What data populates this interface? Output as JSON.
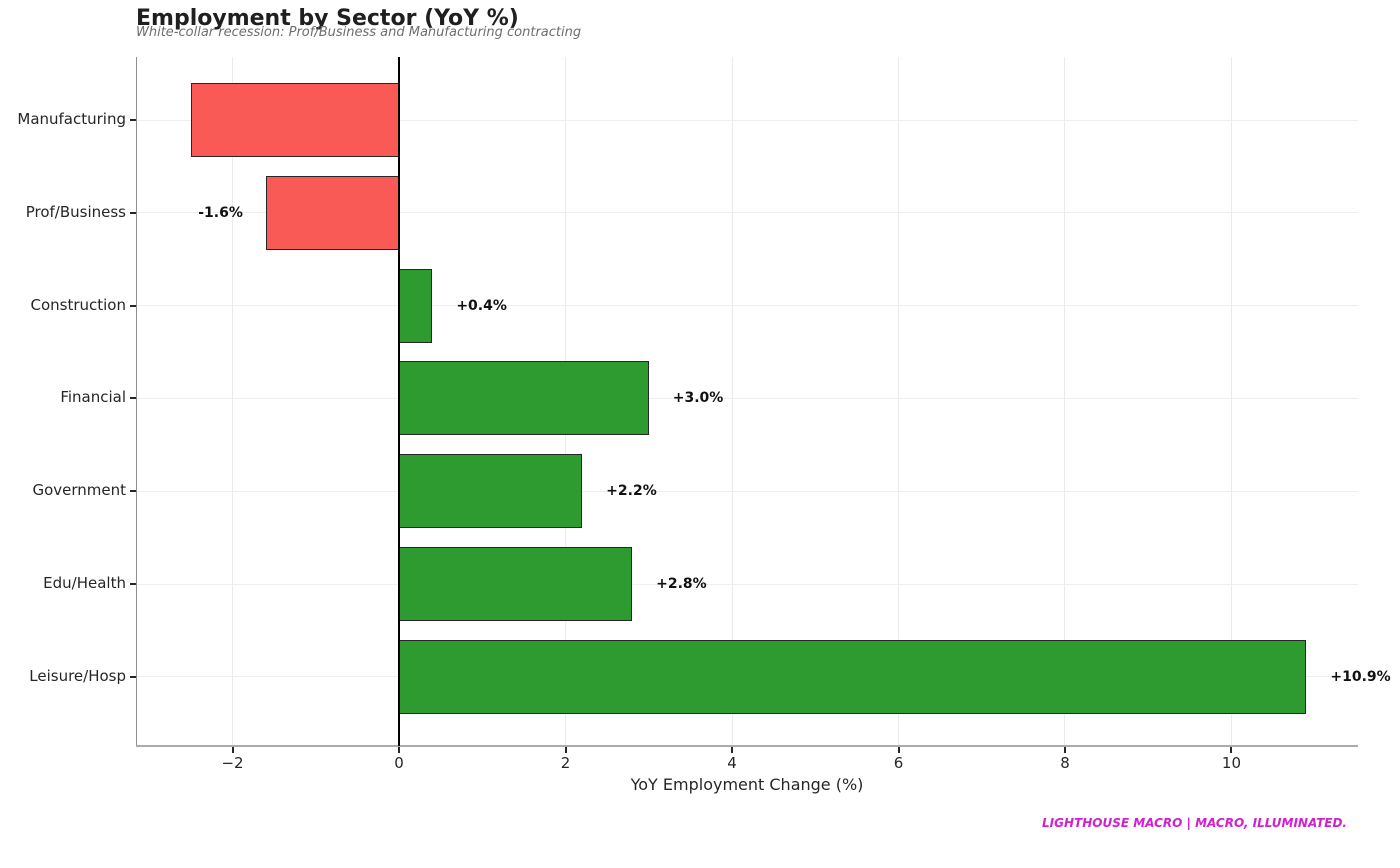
{
  "header": {
    "title": "Employment by Sector (YoY %)",
    "subtitle": "White-collar recession: Prof/Business and Manufacturing contracting"
  },
  "footer": {
    "brand": "LIGHTHOUSE MACRO | MACRO, ILLUMINATED."
  },
  "chart_data": {
    "type": "bar",
    "orientation": "horizontal",
    "title": "Employment by Sector (YoY %)",
    "subtitle": "White-collar recession: Prof/Business and Manufacturing contracting",
    "categories": [
      "Manufacturing",
      "Prof/Business",
      "Construction",
      "Financial",
      "Government",
      "Edu/Health",
      "Leisure/Hosp"
    ],
    "values": [
      -2.5,
      -1.6,
      0.4,
      3.0,
      2.2,
      2.8,
      10.9
    ],
    "bar_labels": [
      "",
      "-1.6%",
      "+0.4%",
      "+3.0%",
      "+2.2%",
      "+2.8%",
      "+10.9%"
    ],
    "xlabel": "YoY Employment Change (%)",
    "ylabel": "",
    "x_ticks": [
      -2,
      0,
      2,
      4,
      6,
      8,
      10
    ],
    "x_tick_labels": [
      "−2",
      "0",
      "2",
      "4",
      "6",
      "8",
      "10"
    ],
    "xlim": [
      -3.16,
      11.52
    ],
    "grid": true,
    "legend": "none",
    "zero_line": true,
    "colors": {
      "negative_bar": "#fa5a55",
      "positive_bar": "#2e9b31",
      "bar_edge": "#262626",
      "zero_line": "#000000",
      "grid": "#ebebeb",
      "footer_accent": "#d020d0"
    }
  }
}
